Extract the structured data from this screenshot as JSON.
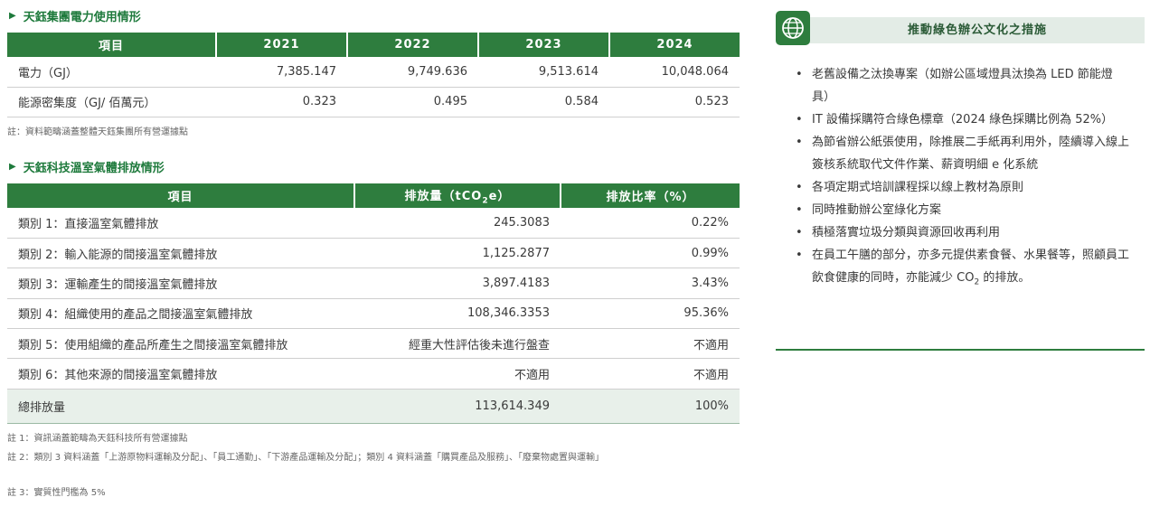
{
  "table1": {
    "title": "天鈺集團電力使用情形",
    "headers": [
      "項目",
      "2021",
      "2022",
      "2023",
      "2024"
    ],
    "rows": [
      [
        "電力（GJ）",
        "7,385.147",
        "9,749.636",
        "9,513.614",
        "10,048.064"
      ],
      [
        "能源密集度（GJ/ 佰萬元）",
        "0.323",
        "0.495",
        "0.584",
        "0.523"
      ]
    ],
    "note": "註：資料範疇涵蓋整體天鈺集團所有營運據點"
  },
  "table2": {
    "title": "天鈺科技溫室氣體排放情形",
    "headers": {
      "item": "項目",
      "emission_pre": "排放量（tCO",
      "emission_sub": "2",
      "emission_post": "e）",
      "ratio": "排放比率（%）"
    },
    "rows": [
      [
        "類別 1：直接溫室氣體排放",
        "245.3083",
        "0.22%"
      ],
      [
        "類別 2：輸入能源的間接溫室氣體排放",
        "1,125.2877",
        "0.99%"
      ],
      [
        "類別 3：運輸產生的間接溫室氣體排放",
        "3,897.4183",
        "3.43%"
      ],
      [
        "類別 4：組織使用的產品之間接溫室氣體排放",
        "108,346.3353",
        "95.36%"
      ],
      [
        "類別 5：使用組織的產品所產生之間接溫室氣體排放",
        "經重大性評估後未進行盤查",
        "不適用"
      ],
      [
        "類別 6：其他來源的間接溫室氣體排放",
        "不適用",
        "不適用"
      ]
    ],
    "total": [
      "總排放量",
      "113,614.349",
      "100%"
    ],
    "notes": [
      "註 1：資訊涵蓋範疇為天鈺科技所有營運據點",
      "註 2：類別 3 資料涵蓋「上游原物料運輸及分配」、「員工通勤」、「下游產品運輸及分配」；類別 4 資料涵蓋「購買產品及服務」、「廢棄物處置與運輸」",
      "註 3：實質性門檻為 5%"
    ]
  },
  "panel": {
    "icon": "globe-icon",
    "title": "推動綠色辦公文化之措施",
    "items": [
      "老舊設備之汰換專案（如辦公區域燈具汰換為 LED 節能燈具）",
      "IT 設備採購符合綠色標章（2024 綠色採購比例為 52%）",
      "為節省辦公紙張使用，除推展二手紙再利用外，陸續導入線上簽核系統取代文件作業、薪資明細 e 化系統",
      "各項定期式培訓課程採以線上教材為原則",
      "同時推動辦公室綠化方案",
      "積極落實垃圾分類與資源回收再利用"
    ],
    "last_item_pre": "在員工午膳的部分，亦多元提供素食餐、水果餐等，照顧員工飲食健康的同時，亦能減少 CO",
    "last_item_sub": "2",
    "last_item_post": " 的排放。"
  },
  "colors": {
    "accent": "#2e7d3e",
    "title_green": "#1e7a3c",
    "total_row": "#e8f0ea"
  }
}
